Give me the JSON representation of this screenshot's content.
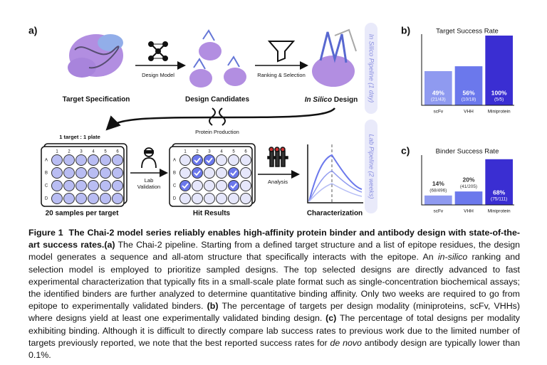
{
  "diagram": {
    "panel_label": "a)",
    "target_specification": "Target Specification",
    "design_model": "Design Model",
    "design_candidates": "Design Candidates",
    "ranking_selection": "Ranking & Selection",
    "in_silico_design": {
      "emphasis": "In Silico",
      "rest": "Design"
    },
    "in_silico_pipeline": "In Silico Pipeline (1 day)",
    "protein_production": "Protein Production",
    "lab_pipeline": "Lab Pipeline (2 weeks)",
    "plate_ratio": "1 target : 1 plate",
    "lab_validation": [
      "Lab",
      "Validation"
    ],
    "analysis": "Analysis",
    "samples_per_target": "20 samples per target",
    "hit_results": "Hit Results",
    "characterization": "Characterization",
    "plate": {
      "columns": [
        "1",
        "2",
        "3",
        "4",
        "5",
        "6"
      ],
      "rows": [
        "A",
        "B",
        "C",
        "D"
      ]
    }
  },
  "chart_data": [
    {
      "type": "bar",
      "panel_label": "b)",
      "title": "Target Success Rate",
      "categories": [
        "scFv",
        "VHH",
        "Miniprotein"
      ],
      "values": [
        49,
        56,
        100
      ],
      "value_labels": [
        "49%",
        "56%",
        "100%"
      ],
      "count_labels": [
        "(21/43)",
        "(10/18)",
        "(5/5)"
      ],
      "colors": [
        "#8f9af0",
        "#6b78ec",
        "#3a2ed2"
      ],
      "ylim": [
        0,
        100
      ]
    },
    {
      "type": "bar",
      "panel_label": "c)",
      "title": "Binder Success Rate",
      "categories": [
        "scFv",
        "VHH",
        "Miniprotein"
      ],
      "values": [
        14,
        20,
        68
      ],
      "value_labels": [
        "14%",
        "20%",
        "68%"
      ],
      "count_labels": [
        "(68/496)",
        "(41/205)",
        "(75/111)"
      ],
      "colors": [
        "#8f9af0",
        "#6b78ec",
        "#3a2ed2"
      ],
      "ylim": [
        0,
        72
      ]
    }
  ],
  "caption": {
    "label": "Figure 1",
    "title": "The Chai-2 model series reliably enables high-affinity protein binder and antibody design with state-of-the-art success rates.",
    "body": [
      "(a)",
      " The Chai-2 pipeline. Starting from a defined target structure and a list of epitope residues, the design model generates a sequence and all-atom structure that specifically interacts with the epitope. An ",
      "in-silico",
      " ranking and selection model is employed to prioritize sampled designs. The top selected designs are directly advanced to fast experimental characterization that typically fits in a small-scale plate format such as single-concentration biochemical assays; the identified binders are further analyzed to determine quantitative binding affinity. Only two weeks are required to go from epitope to experimentally validated binders. ",
      "(b)",
      " The percentage of targets per design modality (miniproteins, scFv, VHHs) where designs yield at least one experimentally validated binding design. ",
      "(c)",
      " The percentage of total designs per modality exhibiting binding. Although it is difficult to directly compare lab success rates to previous work due to the limited number of targets previously reported, we note that the best reported success rates for ",
      "de novo",
      " antibody design are typically lower than 0.1%."
    ]
  }
}
